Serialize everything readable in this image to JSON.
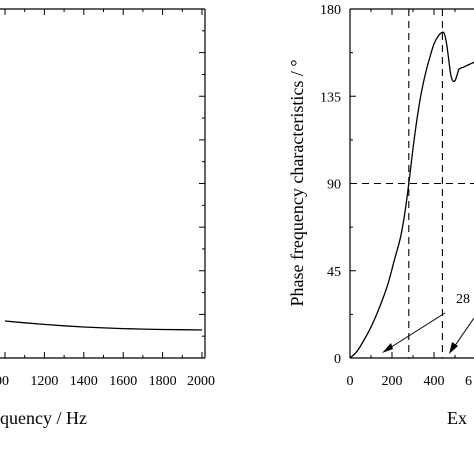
{
  "chart_data": [
    {
      "type": "line",
      "xlabel": "quency / Hz",
      "ylabel": "",
      "xlim": [
        1000,
        2000
      ],
      "x_ticks": [
        "00",
        "1200",
        "1400",
        "1600",
        "1800",
        "2000"
      ],
      "series": [
        {
          "x": [
            1000,
            1100,
            1200,
            1300,
            1400,
            1500,
            1600,
            1700,
            1800,
            1900,
            2000
          ],
          "y": [
            0.0,
            -0.8,
            -1.5,
            -2.1,
            -2.6,
            -3.0,
            -3.3,
            -3.5,
            -3.7,
            -3.8,
            -3.9
          ]
        }
      ],
      "grid": false
    },
    {
      "type": "line",
      "xlabel": "Ex",
      "ylabel": "Phase frequency characteristics / °",
      "xlim": [
        0,
        650
      ],
      "ylim": [
        0,
        180
      ],
      "x_ticks": [
        "0",
        "200",
        "400",
        "6"
      ],
      "y_ticks": [
        "0",
        "45",
        "90",
        "135",
        "180"
      ],
      "series": [
        {
          "x": [
            0,
            30,
            60,
            100,
            140,
            180,
            210,
            240,
            260,
            280,
            300,
            320,
            340,
            360,
            380,
            400,
            420,
            440,
            450,
            460,
            470,
            480,
            490,
            500,
            510,
            520,
            540,
            560,
            580,
            600,
            620,
            650
          ],
          "y": [
            0,
            3,
            8,
            16,
            26,
            38,
            50,
            62,
            74,
            90,
            108,
            124,
            137,
            147,
            155,
            162,
            166,
            168,
            167,
            162,
            154,
            146,
            143,
            143,
            146,
            149,
            150,
            151,
            152,
            153,
            154,
            155
          ]
        }
      ],
      "reference_lines": {
        "horizontal_y": 90,
        "vertical_x": [
          280,
          440
        ]
      },
      "annotations": [
        "28"
      ],
      "grid": false
    }
  ]
}
